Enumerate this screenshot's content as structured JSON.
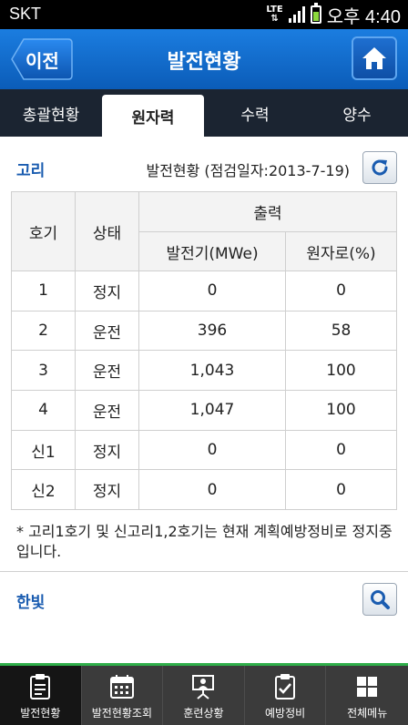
{
  "status_bar": {
    "carrier": "SKT",
    "network": "LTE",
    "time": "오후 4:40"
  },
  "header": {
    "back_label": "이전",
    "title": "발전현황"
  },
  "tabs": [
    {
      "label": "총괄현황"
    },
    {
      "label": "원자력"
    },
    {
      "label": "수력"
    },
    {
      "label": "양수"
    }
  ],
  "active_tab": "원자력",
  "plant1": {
    "name": "고리",
    "info": "발전현황 (점검일자:2013-7-19)",
    "table": {
      "headers": {
        "unit": "호기",
        "status": "상태",
        "output": "출력",
        "generator": "발전기(MWe)",
        "reactor": "원자로(%)"
      },
      "rows": [
        {
          "unit": "1",
          "status": "정지",
          "generator": "0",
          "reactor": "0"
        },
        {
          "unit": "2",
          "status": "운전",
          "generator": "396",
          "reactor": "58"
        },
        {
          "unit": "3",
          "status": "운전",
          "generator": "1,043",
          "reactor": "100"
        },
        {
          "unit": "4",
          "status": "운전",
          "generator": "1,047",
          "reactor": "100"
        },
        {
          "unit": "신1",
          "status": "정지",
          "generator": "0",
          "reactor": "0"
        },
        {
          "unit": "신2",
          "status": "정지",
          "generator": "0",
          "reactor": "0"
        }
      ]
    },
    "note": "* 고리1호기 및 신고리1,2호기는 현재 계획예방정비로 정지중입니다."
  },
  "plant2": {
    "name": "한빛"
  },
  "bottom_nav": [
    {
      "label": "발전현황",
      "icon": "clipboard-icon"
    },
    {
      "label": "발전현황조회",
      "icon": "calendar-icon"
    },
    {
      "label": "훈련상황",
      "icon": "presentation-icon"
    },
    {
      "label": "예방정비",
      "icon": "checklist-icon"
    },
    {
      "label": "전체메뉴",
      "icon": "grid-icon"
    }
  ],
  "colors": {
    "header_blue": "#0b5cb8",
    "tab_bar": "#1b2431",
    "section_title": "#1a5cb0",
    "nav_accent": "#2fae4a"
  }
}
